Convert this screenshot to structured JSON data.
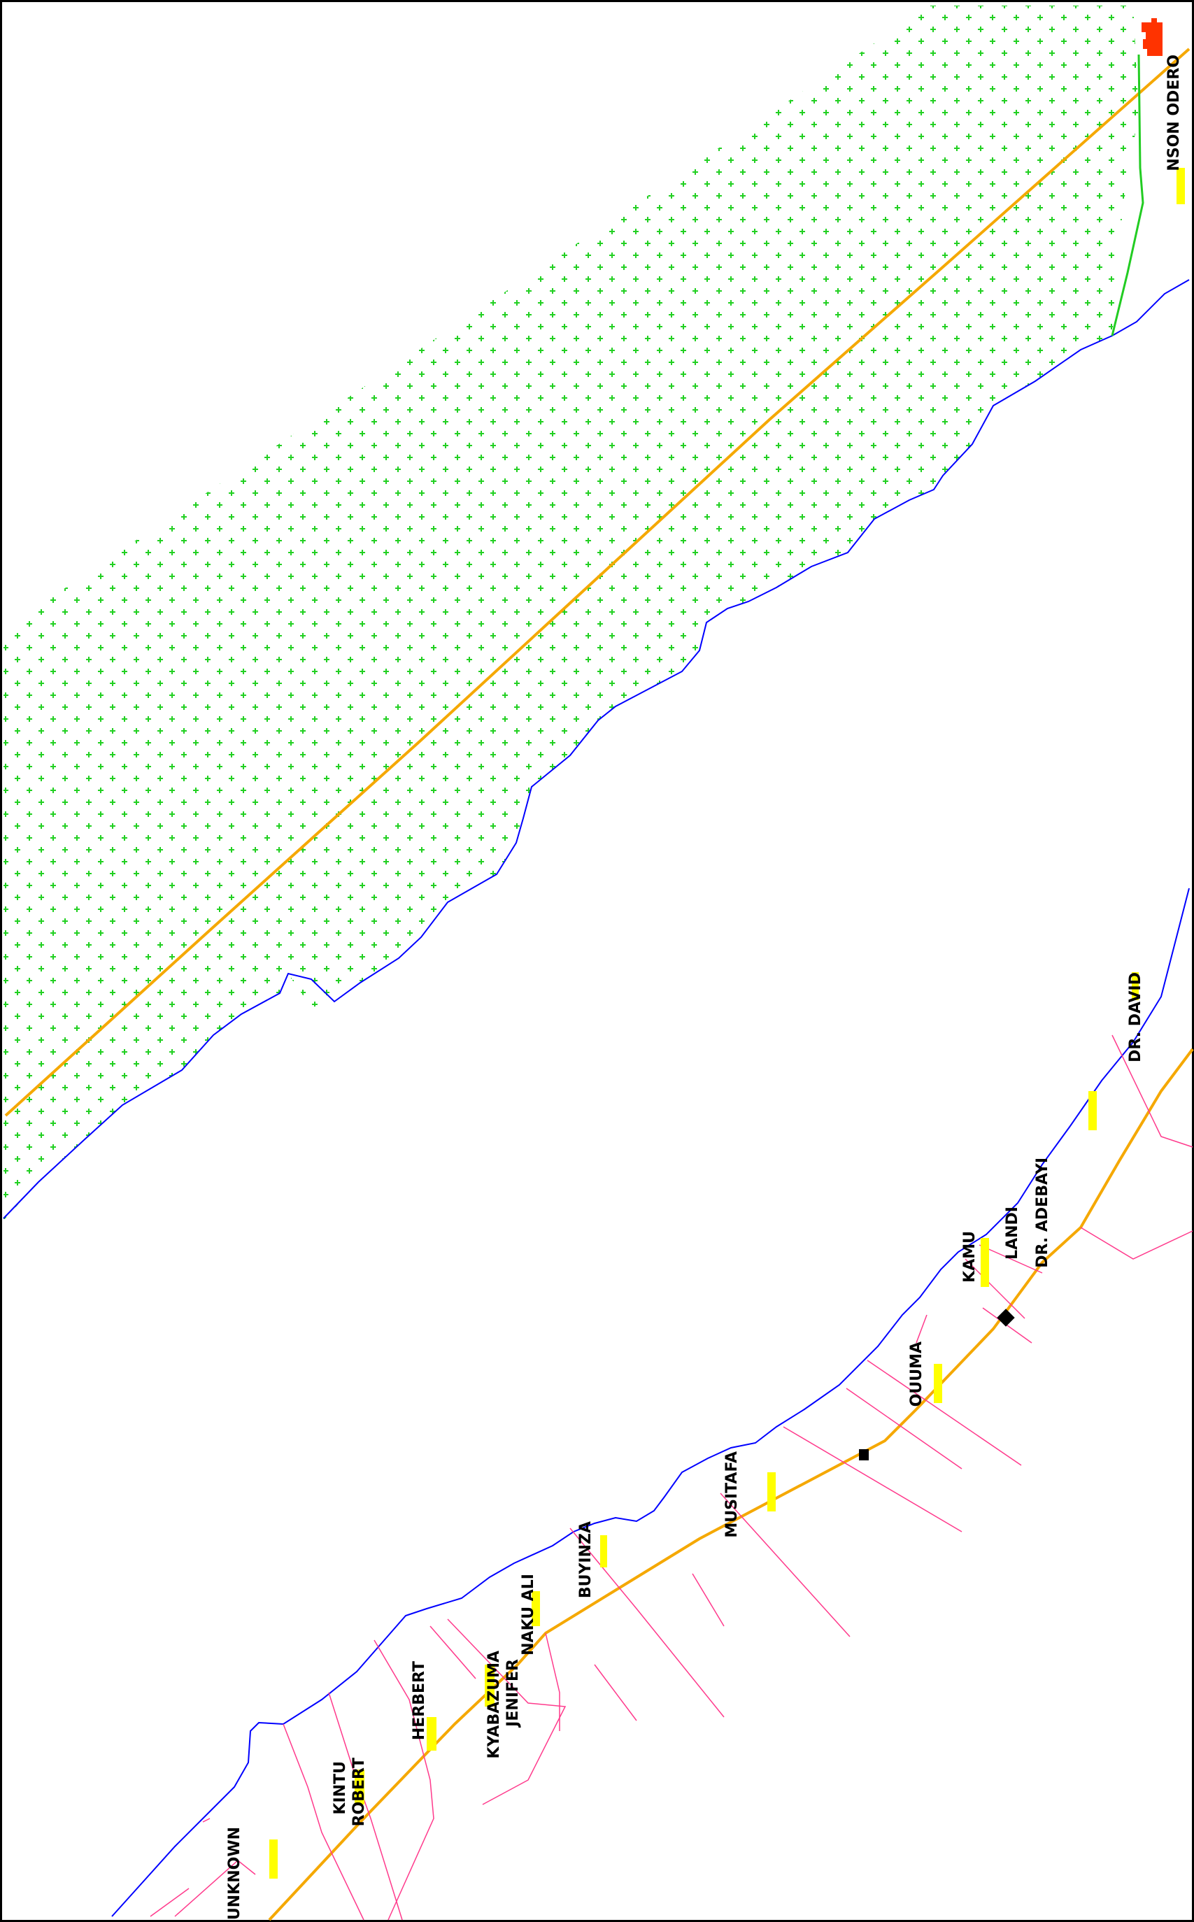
{
  "map": {
    "colors": {
      "background": "#ffffff",
      "frame": "#000000",
      "river": "#0000ff",
      "vegetation": "#22d022",
      "road": "#f5a800",
      "parcel_boundary": "#ff3a8c",
      "parcel_tag": "#ffff00",
      "building": "#000000",
      "structure_red": "#ff3300",
      "green_line": "#22cc22"
    },
    "layers": [
      "river-bank",
      "vegetation-area",
      "road",
      "parcel-boundaries",
      "parcel-owner-labels",
      "parcel-tags",
      "buildings"
    ],
    "owners": {
      "nson_odero": "NSON ODERO",
      "dr_david": "DR. DAVID",
      "dr_adebayi": "DR. ADEBAYI",
      "landi": "LANDI",
      "kamu": "KAMU",
      "ouuma": "OUUMA",
      "musitafa": "MUSITAFA",
      "buyinza": "BUYINZA",
      "naku_ali": "NAKU ALI",
      "kyabazuma_1": "KYABAZUMA",
      "kyabazuma_2": "JENIFER",
      "herbert": "HERBERT",
      "kintu_1": "KINTU",
      "kintu_2": "ROBERT",
      "unknown": "UNKNOWN"
    }
  }
}
